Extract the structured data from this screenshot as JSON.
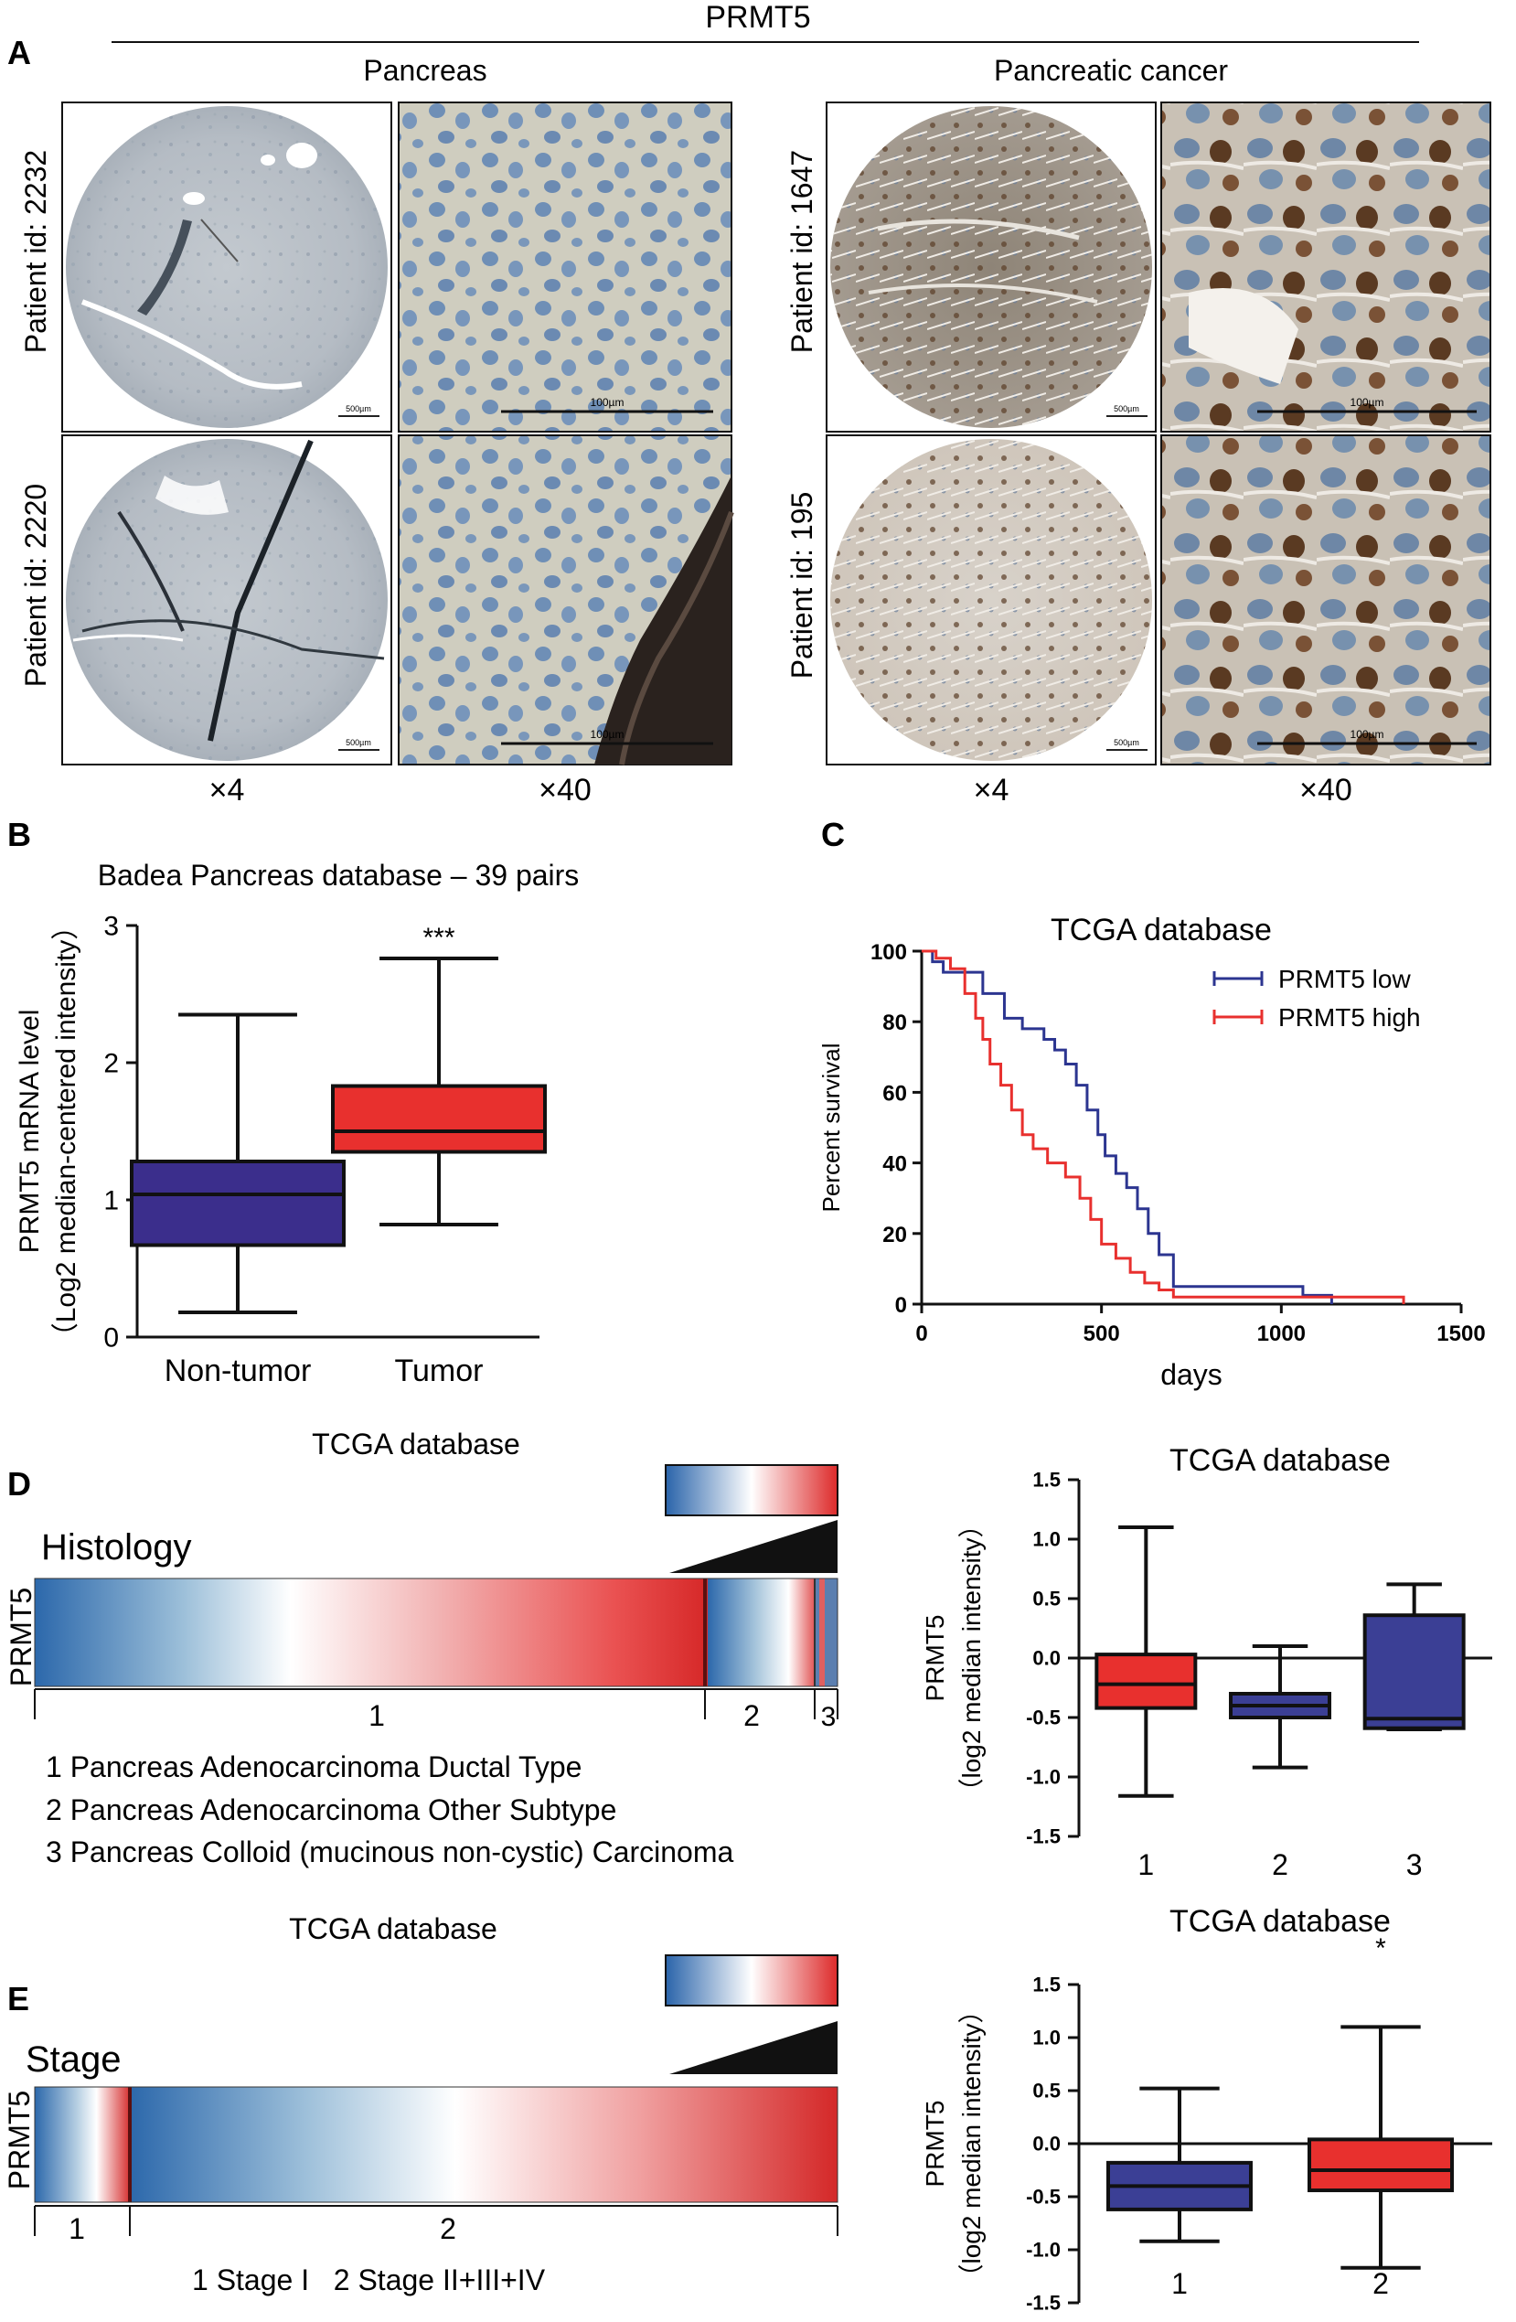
{
  "figure": {
    "title": "PRMT5",
    "panel_labels": [
      "A",
      "B",
      "C",
      "D",
      "E"
    ]
  },
  "panel_a": {
    "group_left": "Pancreas",
    "group_right": "Pancreatic cancer",
    "patients_left": [
      "Patient id: 2232",
      "Patient id: 2220"
    ],
    "patients_right": [
      "Patient id: 1647",
      "Patient id: 195"
    ],
    "scale_small": "500µm",
    "scale_large": "100µm",
    "magnifications": [
      "×4",
      "×40",
      "×4",
      "×40"
    ],
    "colors": {
      "normal_tissue": "#b8bfc6",
      "cancer_tissue": "#9a8f82",
      "stain_brown": "#6b4a2e",
      "nuclei_blue": "#6f8fb6"
    }
  },
  "chart_data": [
    {
      "id": "B",
      "type": "box",
      "title": "Badea Pancreas database – 39 pairs",
      "ylabel_line1": "PRMT5 mRNA level",
      "ylabel_line2": "（Log2 median-centered intensity）",
      "ylim": [
        0,
        3
      ],
      "yticks": [
        0,
        1,
        2,
        3
      ],
      "categories": [
        "Non-tumor",
        "Tumor"
      ],
      "boxes": [
        {
          "min": 0.18,
          "q1": 0.67,
          "median": 1.04,
          "q3": 1.28,
          "max": 2.35,
          "color": "#3b2e8c"
        },
        {
          "min": 0.82,
          "q1": 1.35,
          "median": 1.5,
          "q3": 1.83,
          "max": 2.76,
          "color": "#e8302e"
        }
      ],
      "annotation": "***"
    },
    {
      "id": "C",
      "type": "line",
      "title": "TCGA database",
      "xlabel": "days",
      "ylabel": "Percent survival",
      "xlim": [
        0,
        1500
      ],
      "ylim": [
        0,
        100
      ],
      "xticks": [
        0,
        500,
        1000,
        1500
      ],
      "yticks": [
        0,
        20,
        40,
        60,
        80,
        100
      ],
      "legend": "top-right",
      "series": [
        {
          "name": "PRMT5 low",
          "color": "#2c3590",
          "x": [
            0,
            30,
            60,
            110,
            170,
            230,
            280,
            340,
            370,
            400,
            430,
            460,
            490,
            510,
            540,
            570,
            600,
            630,
            660,
            700,
            1060,
            1140
          ],
          "y": [
            100,
            97,
            94,
            94,
            88,
            81,
            78,
            75,
            72,
            68,
            62,
            55,
            48,
            42,
            37,
            33,
            27,
            20,
            14,
            5,
            2.5,
            0
          ]
        },
        {
          "name": "PRMT5 high",
          "color": "#e8302e",
          "x": [
            0,
            40,
            80,
            120,
            150,
            170,
            190,
            220,
            250,
            280,
            310,
            350,
            400,
            440,
            470,
            500,
            540,
            580,
            620,
            660,
            700,
            1340
          ],
          "y": [
            100,
            98,
            95,
            88,
            81,
            75,
            68,
            62,
            55,
            48,
            44,
            40,
            36,
            30,
            24,
            17,
            13,
            9,
            6,
            4,
            2,
            0
          ]
        }
      ]
    },
    {
      "id": "D",
      "type": "box",
      "title": "TCGA database",
      "ylabel_line1": "PRMT5",
      "ylabel_line2": "（log2 median intensity）",
      "ylim": [
        -1.5,
        1.5
      ],
      "yticks": [
        "-1.5",
        "-1.0",
        "-0.5",
        "0.0",
        "0.5",
        "1.0",
        "1.5"
      ],
      "categories": [
        "1",
        "2",
        "3"
      ],
      "boxes": [
        {
          "min": -1.16,
          "q1": -0.42,
          "median": -0.22,
          "q3": 0.03,
          "max": 1.1,
          "color": "#e8302e"
        },
        {
          "min": -0.92,
          "q1": -0.5,
          "median": -0.4,
          "q3": -0.3,
          "max": 0.1,
          "color": "#3b3f95"
        },
        {
          "min": -0.6,
          "q1": -0.59,
          "median": -0.51,
          "q3": 0.36,
          "max": 0.62,
          "color": "#3b3f95"
        }
      ]
    },
    {
      "id": "E",
      "type": "box",
      "title": "TCGA database",
      "ylabel_line1": "PRMT5",
      "ylabel_line2": "（log2 median intensity）",
      "ylim": [
        -1.5,
        1.5
      ],
      "yticks": [
        "-1.5",
        "-1.0",
        "-0.5",
        "0.0",
        "0.5",
        "1.0",
        "1.5"
      ],
      "categories": [
        "1",
        "2"
      ],
      "boxes": [
        {
          "min": -0.92,
          "q1": -0.62,
          "median": -0.4,
          "q3": -0.18,
          "max": 0.52,
          "color": "#3b3f95"
        },
        {
          "min": -1.17,
          "q1": -0.44,
          "median": -0.25,
          "q3": 0.04,
          "max": 1.1,
          "color": "#e8302e"
        }
      ],
      "annotation": "*"
    }
  ],
  "heatmap_d": {
    "title": "TCGA database",
    "label": "Histology",
    "row_label": "PRMT5",
    "groups": [
      "1",
      "2",
      "3"
    ],
    "legend_items": [
      "1 Pancreas Adenocarcinoma Ductal Type",
      "2 Pancreas Adenocarcinoma Other Subtype",
      "3 Pancreas Colloid (mucinous non-cystic) Carcinoma"
    ],
    "colors": {
      "low": "#1f5fa8",
      "mid": "#ffffff",
      "high": "#e8302e"
    }
  },
  "heatmap_e": {
    "title": "TCGA database",
    "label": "Stage",
    "row_label": "PRMT5",
    "groups": [
      "1",
      "2"
    ],
    "legend_text": "1 Stage I   2 Stage II+III+IV",
    "colors": {
      "low": "#1f5fa8",
      "mid": "#ffffff",
      "high": "#e8302e"
    }
  }
}
